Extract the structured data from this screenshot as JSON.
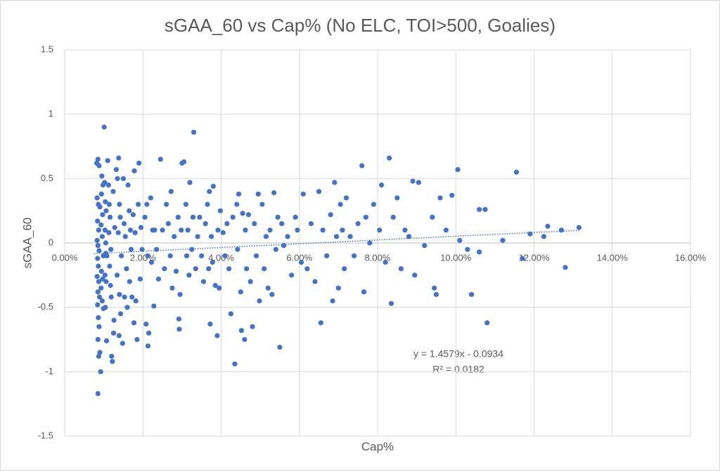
{
  "chart_data": {
    "type": "scatter",
    "title": "sGAA_60 vs Cap% (No ELC, TOI>500, Goalies)",
    "x_label": "Cap%",
    "y_label": "sGAA_60",
    "color": "#4472c4",
    "grid": true,
    "xlim": [
      0,
      0.16
    ],
    "ylim": [
      -1.5,
      1.5
    ],
    "xticks": [
      {
        "value": 0,
        "label": "0.00%"
      },
      {
        "value": 0.02,
        "label": "2.00%"
      },
      {
        "value": 0.04,
        "label": "4.00%"
      },
      {
        "value": 0.06,
        "label": "6.00%"
      },
      {
        "value": 0.08,
        "label": "8.00%"
      },
      {
        "value": 0.1,
        "label": "10.00%"
      },
      {
        "value": 0.12,
        "label": "12.00%"
      },
      {
        "value": 0.14,
        "label": "14.00%"
      },
      {
        "value": 0.16,
        "label": "16.00%"
      }
    ],
    "yticks": [
      -1.5,
      -1,
      -0.5,
      0,
      0.5,
      1,
      1.5
    ],
    "x": [
      0.0082,
      0.0085,
      0.0088,
      0.0083,
      0.0086,
      0.009,
      0.0084,
      0.0087,
      0.0083,
      0.0085,
      0.0088,
      0.0084,
      0.0086,
      0.0083,
      0.0087,
      0.0085,
      0.0089,
      0.0084,
      0.0086,
      0.0088,
      0.0085,
      0.0087,
      0.009,
      0.0085,
      0.0092,
      0.0095,
      0.0098,
      0.0094,
      0.0097,
      0.0093,
      0.0096,
      0.0099,
      0.0094,
      0.0097,
      0.0093,
      0.0096,
      0.0099,
      0.0101,
      0.0102,
      0.0104,
      0.0106,
      0.0103,
      0.0105,
      0.0108,
      0.0103,
      0.0106,
      0.0104,
      0.0107,
      0.0105,
      0.011,
      0.0112,
      0.0114,
      0.0116,
      0.0113,
      0.0118,
      0.0115,
      0.0117,
      0.0119,
      0.012,
      0.0122,
      0.0124,
      0.0126,
      0.0128,
      0.0125,
      0.0132,
      0.0135,
      0.0138,
      0.014,
      0.0142,
      0.0137,
      0.0145,
      0.0134,
      0.014,
      0.0143,
      0.0139,
      0.0148,
      0.015,
      0.0152,
      0.0155,
      0.0158,
      0.0153,
      0.016,
      0.0162,
      0.0165,
      0.0168,
      0.017,
      0.0166,
      0.0172,
      0.0175,
      0.0178,
      0.018,
      0.0182,
      0.0177,
      0.0185,
      0.0188,
      0.019,
      0.0195,
      0.0198,
      0.0193,
      0.0205,
      0.021,
      0.0212,
      0.0208,
      0.0215,
      0.0213,
      0.022,
      0.0225,
      0.0222,
      0.0228,
      0.023,
      0.0235,
      0.024,
      0.0245,
      0.025,
      0.0255,
      0.026,
      0.0265,
      0.027,
      0.0272,
      0.0275,
      0.028,
      0.0285,
      0.029,
      0.0295,
      0.03,
      0.0298,
      0.0292,
      0.0293,
      0.0305,
      0.031,
      0.0312,
      0.0315,
      0.0318,
      0.032,
      0.0325,
      0.0328,
      0.033,
      0.0335,
      0.034,
      0.0345,
      0.035,
      0.0355,
      0.036,
      0.0365,
      0.0368,
      0.037,
      0.0372,
      0.0375,
      0.0378,
      0.038,
      0.0385,
      0.039,
      0.0392,
      0.0395,
      0.0398,
      0.0405,
      0.041,
      0.0415,
      0.042,
      0.0425,
      0.043,
      0.0435,
      0.044,
      0.0442,
      0.0445,
      0.045,
      0.0452,
      0.0455,
      0.046,
      0.0462,
      0.0465,
      0.047,
      0.0475,
      0.048,
      0.0485,
      0.049,
      0.0495,
      0.0498,
      0.0505,
      0.051,
      0.0515,
      0.052,
      0.0525,
      0.053,
      0.0535,
      0.054,
      0.0545,
      0.055,
      0.0555,
      0.056,
      0.057,
      0.058,
      0.059,
      0.0595,
      0.0605,
      0.061,
      0.062,
      0.063,
      0.064,
      0.065,
      0.0655,
      0.066,
      0.067,
      0.068,
      0.0685,
      0.069,
      0.0695,
      0.07,
      0.0705,
      0.071,
      0.0715,
      0.072,
      0.073,
      0.074,
      0.075,
      0.076,
      0.0765,
      0.077,
      0.078,
      0.079,
      0.0805,
      0.081,
      0.082,
      0.083,
      0.0835,
      0.084,
      0.085,
      0.086,
      0.087,
      0.088,
      0.089,
      0.0895,
      0.0905,
      0.092,
      0.094,
      0.0945,
      0.095,
      0.096,
      0.0975,
      0.099,
      0.1005,
      0.101,
      0.103,
      0.104,
      0.106,
      0.106,
      0.1075,
      0.108,
      0.112,
      0.1155,
      0.117,
      0.119,
      0.1225,
      0.1235,
      0.127,
      0.128,
      0.1315
    ],
    "values": [
      0.62,
      0.65,
      0.6,
      0.35,
      0.3,
      0.28,
      0.17,
      0.1,
      0.02,
      -0.02,
      -0.06,
      -0.12,
      -0.18,
      -0.26,
      -0.3,
      -0.38,
      -0.42,
      -0.48,
      -0.58,
      -0.65,
      -0.75,
      -0.88,
      -0.85,
      -1.17,
      -1.0,
      0.52,
      0.45,
      0.38,
      0.22,
      0.14,
      0.05,
      -0.1,
      -0.22,
      -0.28,
      -0.35,
      -0.45,
      -0.51,
      0.9,
      0.47,
      0.32,
      0.25,
      0.1,
      0.0,
      -0.1,
      -0.25,
      -0.3,
      -0.5,
      -0.76,
      -0.08,
      0.64,
      0.45,
      0.3,
      0.2,
      0.08,
      -0.05,
      -0.18,
      -0.33,
      -0.42,
      -0.88,
      -0.92,
      0.4,
      -0.6,
      0.12,
      -0.7,
      0.57,
      0.5,
      0.66,
      0.3,
      0.2,
      0.08,
      -0.1,
      -0.25,
      -0.4,
      -0.55,
      -0.72,
      -0.78,
      0.5,
      0.15,
      0.05,
      -0.2,
      -0.42,
      -0.5,
      0.45,
      0.25,
      0.1,
      -0.05,
      -0.3,
      -0.42,
      0.22,
      0.56,
      0.08,
      -0.45,
      -0.62,
      -0.75,
      0.3,
      0.62,
      0.12,
      -0.05,
      -0.28,
      0.2,
      0.3,
      -0.1,
      -0.63,
      -0.7,
      -0.8,
      0.35,
      0.1,
      -0.15,
      -0.49,
      0.1,
      -0.05,
      -0.28,
      0.65,
      0.1,
      -0.2,
      0.3,
      0.15,
      -0.1,
      0.4,
      -0.35,
      0.05,
      -0.22,
      0.2,
      -0.4,
      0.62,
      0.1,
      -0.59,
      -0.67,
      0.63,
      0.3,
      -0.1,
      0.1,
      -0.25,
      0.47,
      -0.05,
      0.2,
      0.86,
      -0.2,
      0.05,
      0.2,
      -0.1,
      -0.3,
      0.15,
      0.3,
      -0.2,
      0.4,
      -0.63,
      0.05,
      -0.15,
      0.44,
      -0.33,
      -0.72,
      0.1,
      -0.35,
      0.25,
      0.08,
      -0.1,
      0.15,
      -0.2,
      -0.55,
      0.2,
      -0.94,
      0.3,
      -0.05,
      0.38,
      -0.38,
      -0.68,
      0.23,
      -0.75,
      0.1,
      -0.2,
      0.22,
      -0.3,
      -0.65,
      0.15,
      -0.1,
      0.38,
      -0.45,
      0.3,
      -0.2,
      0.05,
      -0.35,
      0.1,
      -0.4,
      0.39,
      -0.05,
      0.2,
      -0.81,
      0.15,
      -0.02,
      0.05,
      -0.25,
      0.2,
      0.1,
      -0.15,
      0.38,
      -0.2,
      0.15,
      -0.3,
      0.4,
      -0.62,
      0.1,
      -0.1,
      0.22,
      -0.45,
      0.47,
      0.05,
      -0.35,
      0.3,
      0.1,
      -0.2,
      0.35,
      0.05,
      -0.1,
      0.15,
      0.6,
      -0.38,
      0.2,
      0.0,
      0.3,
      0.1,
      0.45,
      -0.15,
      0.66,
      -0.47,
      0.2,
      0.35,
      -0.2,
      0.1,
      0.05,
      0.48,
      -0.25,
      0.47,
      -0.02,
      0.2,
      -0.35,
      -0.4,
      0.35,
      0.1,
      0.37,
      0.57,
      0.02,
      -0.05,
      -0.4,
      0.26,
      -0.07,
      0.26,
      -0.62,
      0.02,
      0.55,
      -0.12,
      0.07,
      0.05,
      0.13,
      0.1,
      -0.19,
      0.12
    ],
    "trendline": {
      "slope": 1.4579,
      "intercept": -0.0934,
      "x": [
        0.0075,
        0.132
      ],
      "equation": "y = 1.4579x - 0.0934",
      "r_squared": "R² = 0.0182"
    }
  }
}
